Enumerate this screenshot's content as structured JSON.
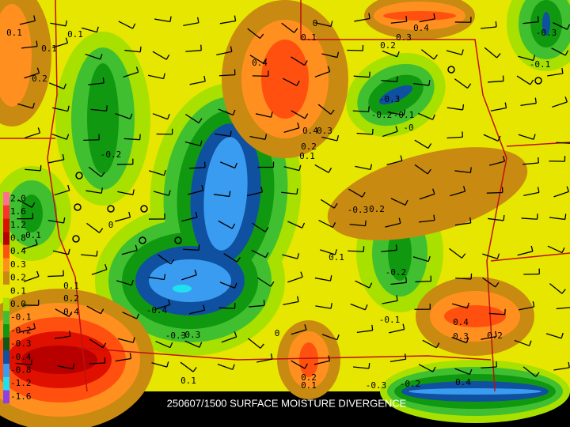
{
  "caption": "250607/1500 SURFACE MOISTURE DIVERGENCE",
  "legend": {
    "labels": [
      "2.0",
      "1.6",
      "1.2",
      "0.8",
      "0.4",
      "0.3",
      "0.2",
      "0.1",
      "0.0",
      "-0.1",
      "-0.2",
      "-0.3",
      "-0.4",
      "-0.8",
      "-1.2",
      "-1.6"
    ]
  },
  "contour_labels": [
    "0.1",
    "0.1",
    "0.1",
    "0.2",
    "0",
    "0.1",
    "0.3",
    "0.4",
    "0.2",
    "-0.3",
    "-0.1",
    "0.4",
    "-0.3",
    "-0.2",
    "-0.1",
    "-0",
    "0.4",
    "0.3",
    "-0.2",
    "0.2",
    "0.1",
    "-0.3",
    "0.2",
    "0",
    "0.1",
    "0.1",
    "-0.2",
    "0.1",
    "0.2",
    "0.4",
    "-0.4",
    "-0.3",
    "-0.3",
    "0",
    "-0.1",
    "0.4",
    "0.3",
    "0.2",
    "0.1",
    "0.2",
    "0.1",
    "-0.3",
    "-0.2",
    "0.4"
  ]
}
